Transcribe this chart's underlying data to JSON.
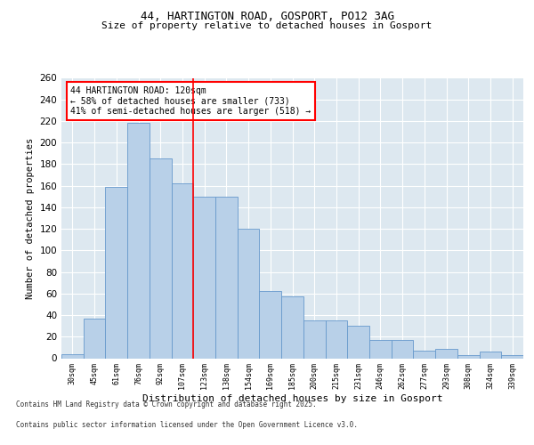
{
  "title1": "44, HARTINGTON ROAD, GOSPORT, PO12 3AG",
  "title2": "Size of property relative to detached houses in Gosport",
  "xlabel": "Distribution of detached houses by size in Gosport",
  "ylabel": "Number of detached properties",
  "categories": [
    "30sqm",
    "45sqm",
    "61sqm",
    "76sqm",
    "92sqm",
    "107sqm",
    "123sqm",
    "138sqm",
    "154sqm",
    "169sqm",
    "185sqm",
    "200sqm",
    "215sqm",
    "231sqm",
    "246sqm",
    "262sqm",
    "277sqm",
    "293sqm",
    "308sqm",
    "324sqm",
    "339sqm"
  ],
  "values": [
    4,
    37,
    159,
    218,
    185,
    162,
    150,
    150,
    120,
    62,
    57,
    35,
    35,
    30,
    17,
    17,
    7,
    9,
    3,
    6,
    3
  ],
  "bar_color": "#b8d0e8",
  "bar_edge_color": "#6699cc",
  "ref_line_x": 5.5,
  "ref_line_label": "44 HARTINGTON ROAD: 120sqm",
  "ref_line_pct_smaller": "58% of detached houses are smaller (733)",
  "ref_line_pct_larger": "41% of semi-detached houses are larger (518)",
  "ylim": [
    0,
    260
  ],
  "yticks": [
    0,
    20,
    40,
    60,
    80,
    100,
    120,
    140,
    160,
    180,
    200,
    220,
    240,
    260
  ],
  "footer1": "Contains HM Land Registry data © Crown copyright and database right 2025.",
  "footer2": "Contains public sector information licensed under the Open Government Licence v3.0.",
  "bg_color": "#dde8f0",
  "fig_bg": "#ffffff",
  "annot_fontsize": 7.0,
  "title1_fontsize": 9.0,
  "title2_fontsize": 8.0,
  "ylabel_fontsize": 7.5,
  "xlabel_fontsize": 8.0,
  "ytick_fontsize": 7.5,
  "xtick_fontsize": 6.0
}
